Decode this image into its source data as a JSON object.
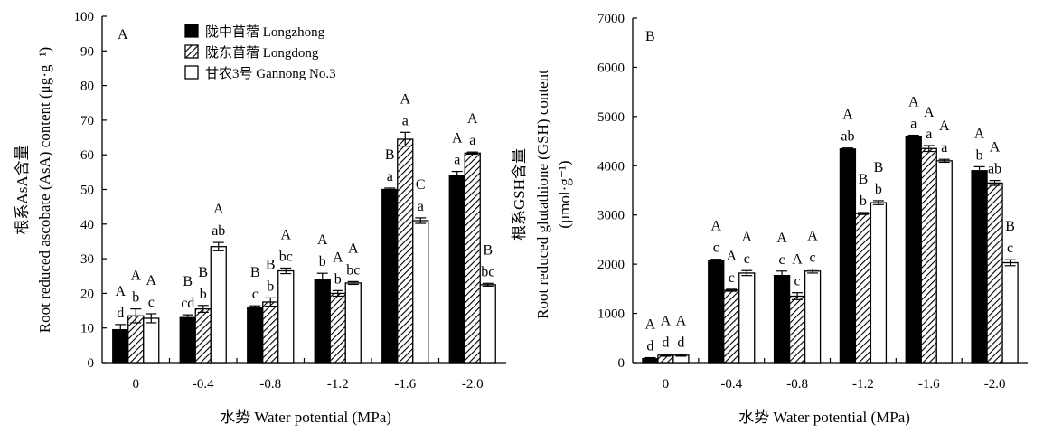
{
  "chart_data": [
    {
      "type": "bar",
      "panel_label": "A",
      "ylabel": "根系AsA含量 Root reduced ascobate (AsA) content (μg·g⁻¹)",
      "ylabel_lines": [
        "根系AsA含量",
        "Root reduced ascobate (AsA) content (μg·g⁻¹)"
      ],
      "xlabel": "水势 Water potential (MPa)",
      "ylim": [
        0,
        100
      ],
      "yticks": [
        0,
        10,
        20,
        30,
        40,
        50,
        60,
        70,
        80,
        90,
        100
      ],
      "categories": [
        "0",
        "-0.4",
        "-0.8",
        "-1.2",
        "-1.6",
        "-2.0"
      ],
      "series": [
        {
          "name": "陇中苜蓿 Longzhong",
          "color": "#000000",
          "values": [
            9.5,
            13.0,
            16.0,
            24.0,
            50.0,
            54.0
          ],
          "errors": [
            1.5,
            0.8,
            0.4,
            1.8,
            0.4,
            1.2
          ],
          "capital_letters": [
            "A",
            "B",
            "B",
            "A",
            "B",
            "A"
          ],
          "lower_letters": [
            "d",
            "cd",
            "c",
            "b",
            "a",
            "a"
          ]
        },
        {
          "name": "陇东苜蓿 Longdong",
          "color": "#ffffff",
          "hatch": true,
          "values": [
            13.5,
            15.5,
            17.5,
            20.0,
            64.5,
            60.5
          ],
          "errors": [
            2.0,
            1.0,
            1.2,
            0.8,
            2.0,
            0.3
          ],
          "capital_letters": [
            "A",
            "B",
            "B",
            "A",
            "A",
            "A"
          ],
          "lower_letters": [
            "b",
            "b",
            "b",
            "b",
            "a",
            "a"
          ]
        },
        {
          "name": "甘农3号 Gannong No.3",
          "color": "#ffffff",
          "values": [
            12.8,
            33.5,
            26.5,
            23.0,
            41.0,
            22.5
          ],
          "errors": [
            1.3,
            1.2,
            0.8,
            0.4,
            0.8,
            0.4
          ],
          "capital_letters": [
            "A",
            "A",
            "A",
            "A",
            "C",
            "B"
          ],
          "lower_letters": [
            "c",
            "ab",
            "bc",
            "bc",
            "a",
            "bc"
          ]
        }
      ],
      "legend": {
        "position": "top-center"
      },
      "grid": false
    },
    {
      "type": "bar",
      "panel_label": "B",
      "ylabel": "根系GSH含量 Root reduced glutathione (GSH) content (μmol·g⁻¹)",
      "ylabel_lines": [
        "根系GSH含量",
        "Root reduced glutathione (GSH) content",
        "(μmol·g⁻¹)"
      ],
      "xlabel": "水势 Water potential (MPa)",
      "ylim": [
        0,
        7000
      ],
      "yticks": [
        0,
        1000,
        2000,
        3000,
        4000,
        5000,
        6000,
        7000
      ],
      "categories": [
        "0",
        "-0.4",
        "-0.8",
        "-1.2",
        "-1.6",
        "-2.0"
      ],
      "series": [
        {
          "name": "陇中苜蓿 Longzhong",
          "color": "#000000",
          "values": [
            80,
            2070,
            1770,
            4340,
            4600,
            3900
          ],
          "errors": [
            20,
            30,
            90,
            20,
            20,
            80
          ],
          "capital_letters": [
            "A",
            "A",
            "A",
            "A",
            "A",
            "A"
          ],
          "lower_letters": [
            "d",
            "c",
            "c",
            "ab",
            "a",
            "b"
          ]
        },
        {
          "name": "陇东苜蓿 Longdong",
          "color": "#ffffff",
          "hatch": true,
          "values": [
            150,
            1470,
            1350,
            3030,
            4350,
            3650
          ],
          "errors": [
            20,
            20,
            70,
            20,
            60,
            50
          ],
          "capital_letters": [
            "A",
            "A",
            "A",
            "B",
            "A",
            "A"
          ],
          "lower_letters": [
            "d",
            "c",
            "c",
            "b",
            "a",
            "ab"
          ]
        },
        {
          "name": "甘农3号 Gannong No.3",
          "color": "#ffffff",
          "values": [
            150,
            1820,
            1860,
            3250,
            4100,
            2030
          ],
          "errors": [
            20,
            50,
            40,
            40,
            30,
            60
          ],
          "capital_letters": [
            "A",
            "A",
            "A",
            "B",
            "A",
            "B"
          ],
          "lower_letters": [
            "d",
            "c",
            "c",
            "b",
            "a",
            "c"
          ]
        }
      ],
      "grid": false
    }
  ]
}
